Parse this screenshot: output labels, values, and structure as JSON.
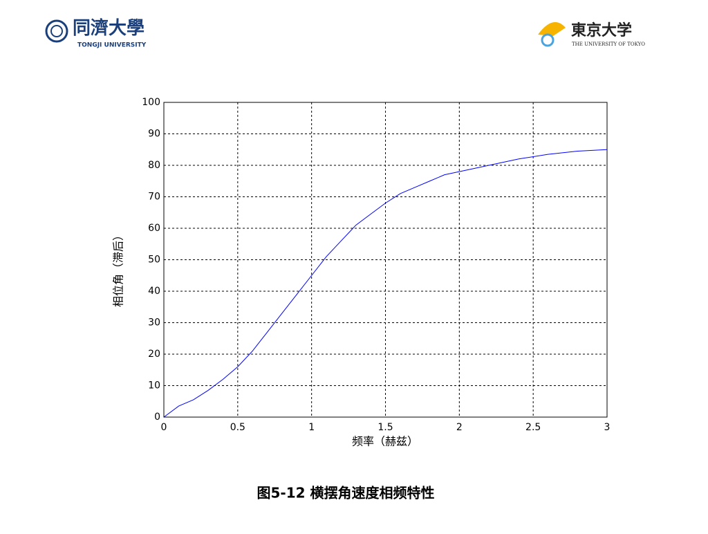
{
  "header": {
    "left_logo": "同濟大學",
    "left_logo_sub": "TONGJI UNIVERSITY",
    "right_logo": "東京大学",
    "right_logo_sub": "THE UNIVERSITY OF TOKYO"
  },
  "chart_data": {
    "type": "line",
    "xlabel": "频率（赫兹）",
    "ylabel": "相位角（滞后）",
    "x": [
      0,
      0.1,
      0.2,
      0.3,
      0.4,
      0.5,
      0.6,
      0.7,
      0.8,
      0.9,
      1.0,
      1.1,
      1.2,
      1.3,
      1.4,
      1.5,
      1.6,
      1.7,
      1.8,
      1.9,
      2.0,
      2.2,
      2.4,
      2.6,
      2.8,
      3.0
    ],
    "values": [
      0,
      3.5,
      5.5,
      8.5,
      12,
      16,
      21,
      27,
      33,
      39,
      45,
      51,
      56,
      61,
      64.5,
      68,
      71,
      73,
      75,
      77,
      78,
      80,
      82,
      83.5,
      84.5,
      85
    ],
    "color": "#0000ff",
    "xlim": [
      0,
      3
    ],
    "xticks": [
      0,
      0.5,
      1,
      1.5,
      2,
      2.5,
      3
    ],
    "ylim": [
      0,
      100
    ],
    "yticks": [
      0,
      10,
      20,
      30,
      40,
      50,
      60,
      70,
      80,
      90,
      100
    ],
    "grid": true
  },
  "caption": "图5-12 横摆角速度相频特性"
}
